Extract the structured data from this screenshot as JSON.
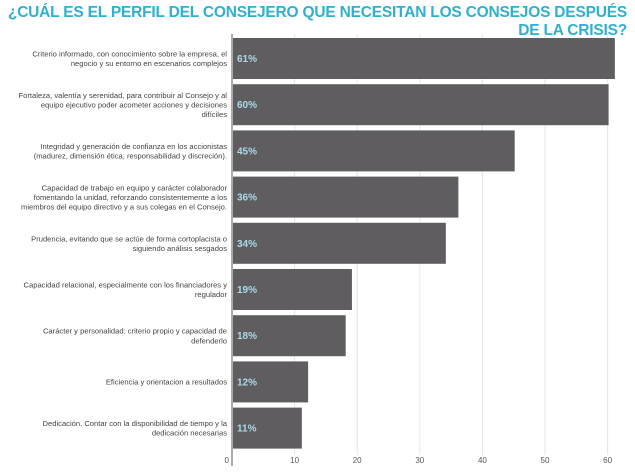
{
  "chart_data": {
    "type": "bar",
    "orientation": "horizontal",
    "title": "¿CUÁL ES EL PERFIL DEL CONSEJERO QUE NECESITAN LOS CONSEJOS DESPUÉS DE LA CRISIS?",
    "categories": [
      [
        "Criterio informado, con conocimiento sobre la empresa, el",
        "negocio y su entorno en escenarios complejos"
      ],
      [
        "Fortaleza, valentía y serenidad, para contribuir al Consejo y al",
        "equipo ejecutivo poder acometer acciones y decisiones",
        "difíciles"
      ],
      [
        "Integridad y generación de confianza en los accionistas",
        "(madurez, dimensión ética, responsabilidad y discreción)."
      ],
      [
        "Capacidad de trabajo en equipo y carácter colaborador",
        "fomentando la unidad, reforzando consistentemente a los",
        "miembros del equipo directivo y a sus colegas en el Consejo."
      ],
      [
        "Prudencia, evitando que se actúe de forma cortoplacista o",
        "siguiendo análisis sesgados"
      ],
      [
        "Capacidad relacional, especialmente con los financiadores y",
        "regulador"
      ],
      [
        "Carácter y personalidad: criterio propio y capacidad de",
        "defenderlo"
      ],
      [
        "Eficiencia y orientacion a resultados"
      ],
      [
        "Dedicación. Contar con la disponibilidad de tiempo y la",
        "dedicación necesarias"
      ]
    ],
    "values": [
      61,
      60,
      45,
      36,
      34,
      19,
      18,
      12,
      11
    ],
    "data_labels": [
      "61%",
      "60%",
      "45%",
      "36%",
      "34%",
      "19%",
      "18%",
      "12%",
      "11%"
    ],
    "xlim": [
      0,
      62
    ],
    "xticks": [
      0,
      10,
      20,
      30,
      40,
      50,
      60
    ],
    "grid": true,
    "bar_color": "#5f5d60",
    "label_color": "#a9dbe8",
    "title_color": "#2fb0cf"
  }
}
